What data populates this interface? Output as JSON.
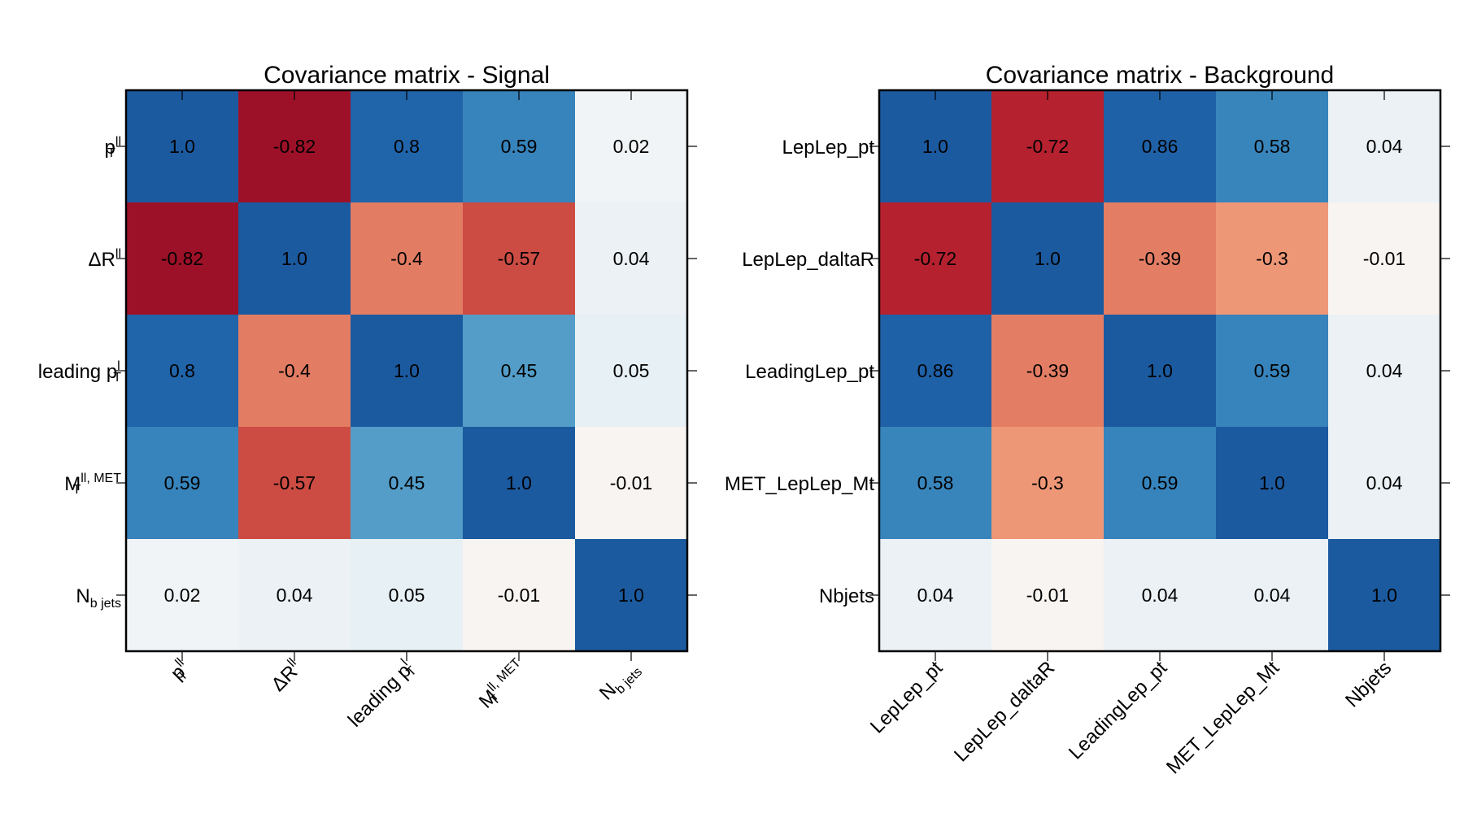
{
  "chart_data": [
    {
      "type": "heatmap",
      "title": "Covariance matrix - Signal",
      "color_scale": "RdBu",
      "value_range": [
        -1,
        1
      ],
      "labels": [
        {
          "main": "p",
          "sup": "ll",
          "sub": "T"
        },
        {
          "main": "ΔR",
          "sup": "ll",
          "sub": ""
        },
        {
          "main": "leading p",
          "sup": "l",
          "sub": "T"
        },
        {
          "main": "M",
          "sup": "ll, MET",
          "sub": "T"
        },
        {
          "main": "N",
          "sup": "",
          "sub": "b jets"
        }
      ],
      "matrix": [
        [
          1.0,
          -0.82,
          0.8,
          0.59,
          0.02
        ],
        [
          -0.82,
          1.0,
          -0.4,
          -0.57,
          0.04
        ],
        [
          0.8,
          -0.4,
          1.0,
          0.45,
          0.05
        ],
        [
          0.59,
          -0.57,
          0.45,
          1.0,
          -0.01
        ],
        [
          0.02,
          0.04,
          0.05,
          -0.01,
          1.0
        ]
      ],
      "cell_text": [
        [
          "1.0",
          "-0.82",
          "0.8",
          "0.59",
          "0.02"
        ],
        [
          "-0.82",
          "1.0",
          "-0.4",
          "-0.57",
          "0.04"
        ],
        [
          "0.8",
          "-0.4",
          "1.0",
          "0.45",
          "0.05"
        ],
        [
          "0.59",
          "-0.57",
          "0.45",
          "1.0",
          "-0.01"
        ],
        [
          "0.02",
          "0.04",
          "0.05",
          "-0.01",
          "1.0"
        ]
      ]
    },
    {
      "type": "heatmap",
      "title": "Covariance matrix - Background",
      "color_scale": "RdBu",
      "value_range": [
        -1,
        1
      ],
      "labels": [
        {
          "main": "LepLep_pt",
          "sup": "",
          "sub": ""
        },
        {
          "main": "LepLep_daltaR",
          "sup": "",
          "sub": ""
        },
        {
          "main": "LeadingLep_pt",
          "sup": "",
          "sub": ""
        },
        {
          "main": "MET_LepLep_Mt",
          "sup": "",
          "sub": ""
        },
        {
          "main": "Nbjets",
          "sup": "",
          "sub": ""
        }
      ],
      "matrix": [
        [
          1.0,
          -0.72,
          0.86,
          0.58,
          0.04
        ],
        [
          -0.72,
          1.0,
          -0.39,
          -0.3,
          -0.01
        ],
        [
          0.86,
          -0.39,
          1.0,
          0.59,
          0.04
        ],
        [
          0.58,
          -0.3,
          0.59,
          1.0,
          0.04
        ],
        [
          0.04,
          -0.01,
          0.04,
          0.04,
          1.0
        ]
      ],
      "cell_text": [
        [
          "1.0",
          "-0.72",
          "0.86",
          "0.58",
          "0.04"
        ],
        [
          "-0.72",
          "1.0",
          "-0.39",
          "-0.3",
          "-0.01"
        ],
        [
          "0.86",
          "-0.39",
          "1.0",
          "0.59",
          "0.04"
        ],
        [
          "0.58",
          "-0.3",
          "0.59",
          "1.0",
          "0.04"
        ],
        [
          "0.04",
          "-0.01",
          "0.04",
          "0.04",
          "1.0"
        ]
      ]
    }
  ]
}
